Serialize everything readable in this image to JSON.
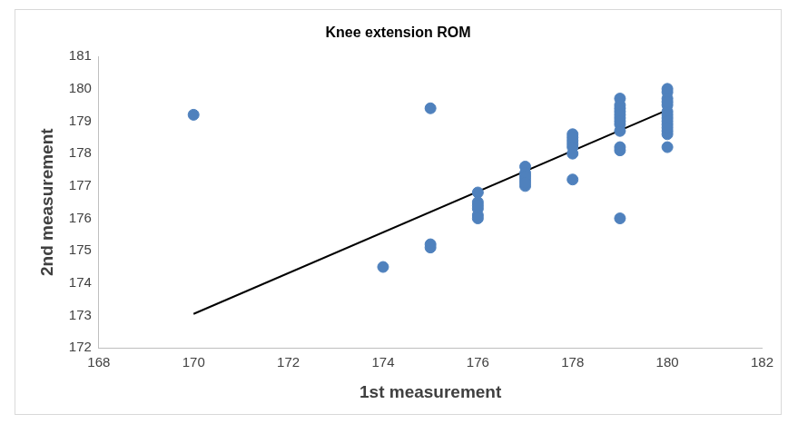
{
  "chart_data": {
    "type": "scatter",
    "title": "Knee extension ROM",
    "x_label": "1st measurement",
    "y_label": "2nd measurement",
    "xlim": [
      168,
      182
    ],
    "xticks": [
      168,
      170,
      172,
      174,
      176,
      178,
      180,
      182
    ],
    "ylim": [
      172,
      181
    ],
    "yticks": [
      172,
      173,
      174,
      175,
      176,
      177,
      178,
      179,
      180,
      181
    ],
    "grid": false,
    "series": [
      {
        "type": "scatter",
        "color": "#4f81bd",
        "marker": "circle",
        "x": [
          170,
          175,
          174,
          175,
          175,
          176,
          176,
          176,
          176,
          176,
          176,
          177,
          177,
          177,
          177,
          177,
          177,
          178,
          178,
          178,
          178,
          178,
          178,
          178,
          179,
          179,
          179,
          179,
          179,
          179,
          179,
          179,
          179,
          179,
          179,
          179,
          180,
          180,
          180,
          180,
          180,
          180,
          180,
          180,
          180,
          180,
          180,
          180,
          180,
          180
        ],
        "values": [
          179.2,
          179.4,
          174.5,
          175.2,
          175.1,
          176.8,
          176.5,
          176.3,
          176.1,
          176.0,
          176.4,
          177.6,
          177.4,
          177.2,
          177.0,
          177.3,
          177.1,
          178.6,
          178.4,
          178.2,
          178.0,
          178.3,
          178.5,
          177.2,
          179.7,
          179.5,
          179.3,
          179.1,
          178.9,
          178.7,
          179.4,
          179.2,
          179.0,
          178.2,
          178.1,
          176.0,
          180.0,
          179.9,
          179.7,
          179.5,
          179.3,
          179.1,
          178.9,
          178.7,
          178.6,
          178.2,
          179.6,
          179.2,
          179.0,
          178.8
        ]
      },
      {
        "type": "line",
        "color": "#000000",
        "line_style": "solid",
        "x": [
          170,
          180
        ],
        "values": [
          173.05,
          179.35
        ]
      }
    ]
  }
}
